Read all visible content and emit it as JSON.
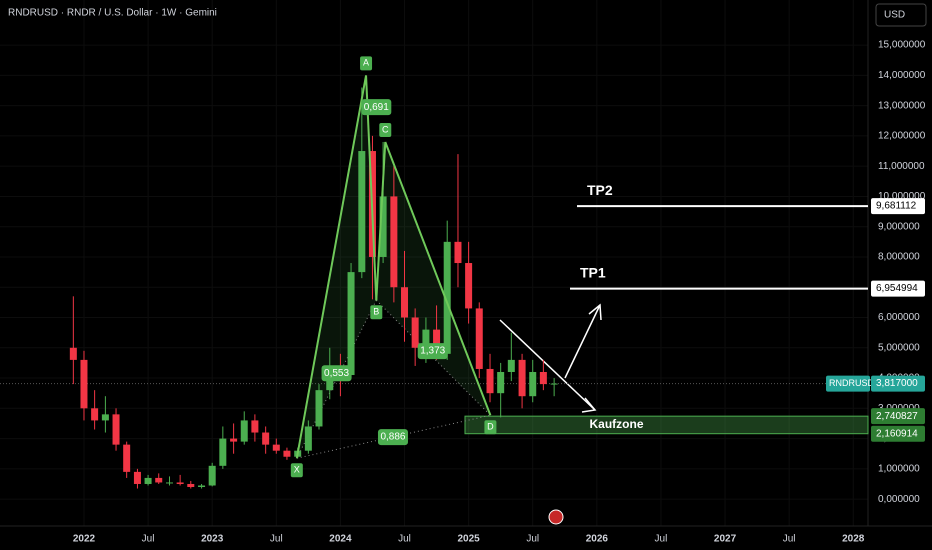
{
  "chart_data": {
    "type": "candlestick",
    "title": "RNDRUSD · RNDR / U.S. Dollar · 1W · Gemini",
    "currency": "USD",
    "x": [
      2021.917,
      2022.0,
      2022.083,
      2022.167,
      2022.25,
      2022.333,
      2022.417,
      2022.5,
      2022.583,
      2022.667,
      2022.75,
      2022.833,
      2022.917,
      2023.0,
      2023.083,
      2023.167,
      2023.25,
      2023.333,
      2023.417,
      2023.5,
      2023.583,
      2023.667,
      2023.75,
      2023.833,
      2023.917,
      2024.0,
      2024.083,
      2024.167,
      2024.25,
      2024.333,
      2024.417,
      2024.5,
      2024.583,
      2024.667,
      2024.75,
      2024.833,
      2024.917,
      2025.0,
      2025.083,
      2025.167,
      2025.25,
      2025.333,
      2025.417,
      2025.5,
      2025.583,
      2025.667
    ],
    "open": [
      5.0,
      4.6,
      3.0,
      2.6,
      2.8,
      1.8,
      0.9,
      0.5,
      0.7,
      0.55,
      0.55,
      0.5,
      0.4,
      0.45,
      1.1,
      2.0,
      1.9,
      2.6,
      2.2,
      1.8,
      1.6,
      1.4,
      1.6,
      2.4,
      3.6,
      4.3,
      4.1,
      7.5,
      11.5,
      8.0,
      10.0,
      7.0,
      6.0,
      5.0,
      5.6,
      4.8,
      8.5,
      7.8,
      6.3,
      4.3,
      3.5,
      4.2,
      4.6,
      3.4,
      4.2,
      3.8
    ],
    "high": [
      6.7,
      4.9,
      3.6,
      3.4,
      3.0,
      1.9,
      1.0,
      0.8,
      0.85,
      0.75,
      0.8,
      0.6,
      0.5,
      1.2,
      2.4,
      2.5,
      2.9,
      2.8,
      2.4,
      2.0,
      1.7,
      1.7,
      2.6,
      3.8,
      5.0,
      4.8,
      7.8,
      13.6,
      12.0,
      11.8,
      11.0,
      8.2,
      6.3,
      6.0,
      6.4,
      9.2,
      11.4,
      8.5,
      6.5,
      4.8,
      4.5,
      5.5,
      4.8,
      4.6,
      4.6,
      4.0
    ],
    "low": [
      3.8,
      2.6,
      2.3,
      2.2,
      1.6,
      0.7,
      0.35,
      0.45,
      0.5,
      0.45,
      0.45,
      0.35,
      0.35,
      0.42,
      1.0,
      1.5,
      1.8,
      1.9,
      1.5,
      1.5,
      1.3,
      1.35,
      1.5,
      2.3,
      3.3,
      3.4,
      4.0,
      7.3,
      6.6,
      7.8,
      6.5,
      5.2,
      4.4,
      4.5,
      4.6,
      4.6,
      7.0,
      5.8,
      4.0,
      3.2,
      2.7,
      3.9,
      3.0,
      3.2,
      3.6,
      3.4
    ],
    "close": [
      4.6,
      3.0,
      2.6,
      2.8,
      1.8,
      0.9,
      0.5,
      0.7,
      0.55,
      0.55,
      0.5,
      0.4,
      0.45,
      1.1,
      2.0,
      1.9,
      2.6,
      2.2,
      1.8,
      1.6,
      1.4,
      1.6,
      2.4,
      3.6,
      4.3,
      4.1,
      7.5,
      11.5,
      8.0,
      10.0,
      7.0,
      6.0,
      5.0,
      5.6,
      4.8,
      8.5,
      7.8,
      6.3,
      4.3,
      3.5,
      4.2,
      4.6,
      3.4,
      4.2,
      3.8,
      3.817
    ],
    "up_color": "#4caf50",
    "down_color": "#f23645",
    "xlim": [
      2021.345,
      2028.115
    ],
    "ylim": [
      -0.69,
      16.49
    ],
    "xticks": [
      2022,
      {
        "value": 2022.5,
        "label": "Jul"
      },
      2023,
      {
        "value": 2023.5,
        "label": "Jul"
      },
      2024,
      {
        "value": 2024.5,
        "label": "Jul"
      },
      2025,
      {
        "value": 2025.5,
        "label": "Jul"
      },
      2026,
      {
        "value": 2026.5,
        "label": "Jul"
      },
      2027,
      {
        "value": 2027.5,
        "label": "Jul"
      },
      2028
    ],
    "yticks": [
      {
        "value": 0,
        "label": "0,000000"
      },
      {
        "value": 1,
        "label": "1,000000"
      },
      {
        "value": 2,
        "label": "2,000000"
      },
      {
        "value": 3,
        "label": "3,000000"
      },
      {
        "value": 4,
        "label": "4,000000"
      },
      {
        "value": 5,
        "label": "5,000000"
      },
      {
        "value": 6,
        "label": "6,000000"
      },
      {
        "value": 7,
        "label": "7,000000"
      },
      {
        "value": 8,
        "label": "8,000000"
      },
      {
        "value": 9,
        "label": "9,000000"
      },
      {
        "value": 10,
        "label": "10,000000"
      },
      {
        "value": 11,
        "label": "11,000000"
      },
      {
        "value": 12,
        "label": "12,000000"
      },
      {
        "value": 13,
        "label": "13,000000"
      },
      {
        "value": 14,
        "label": "14,000000"
      },
      {
        "value": 15,
        "label": "15,000000"
      }
    ],
    "pattern_points": [
      {
        "label": "X",
        "x": 2023.66,
        "y": 1.35
      },
      {
        "label": "A",
        "x": 2024.2,
        "y": 14.0
      },
      {
        "label": "B",
        "x": 2024.28,
        "y": 6.57
      },
      {
        "label": "C",
        "x": 2024.35,
        "y": 11.8
      },
      {
        "label": "D",
        "x": 2025.17,
        "y": 2.77
      }
    ],
    "ratios": [
      {
        "label": "0,691",
        "x": 2024.28,
        "y": 12.95
      },
      {
        "label": "0,553",
        "x": 2023.97,
        "y": 4.16
      },
      {
        "label": "1,373",
        "x": 2024.72,
        "y": 4.89
      },
      {
        "label": "0,886",
        "x": 2024.41,
        "y": 2.05
      }
    ],
    "levels": [
      {
        "name": "TP2",
        "value": 9.681112,
        "value_label": "9,681112"
      },
      {
        "name": "TP1",
        "value": 6.954994,
        "value_label": "6,954994"
      }
    ],
    "zone": {
      "name": "Kaufzone",
      "low": 2.160914,
      "low_label": "2,160914",
      "high": 2.740827,
      "high_label": "2,740827"
    },
    "last_price": {
      "name": "RNDRUSD",
      "value": 3.817,
      "label": "3,817000"
    }
  }
}
